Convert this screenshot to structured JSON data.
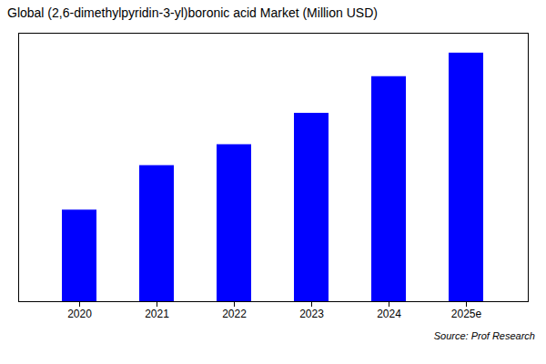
{
  "chart_data": {
    "type": "bar",
    "title": "Global (2,6-dimethylpyridin-3-yl)boronic acid Market (Million USD)",
    "categories": [
      "2020",
      "2021",
      "2022",
      "2023",
      "2024",
      "2025e"
    ],
    "values": [
      3.5,
      5.2,
      6.0,
      7.2,
      8.6,
      9.5
    ],
    "color": "#0000FF",
    "ylim": [
      0,
      10.26
    ],
    "yticks": [],
    "grid": false,
    "tick_labels": "x",
    "annotations": [
      "Source: Prof Research"
    ]
  }
}
